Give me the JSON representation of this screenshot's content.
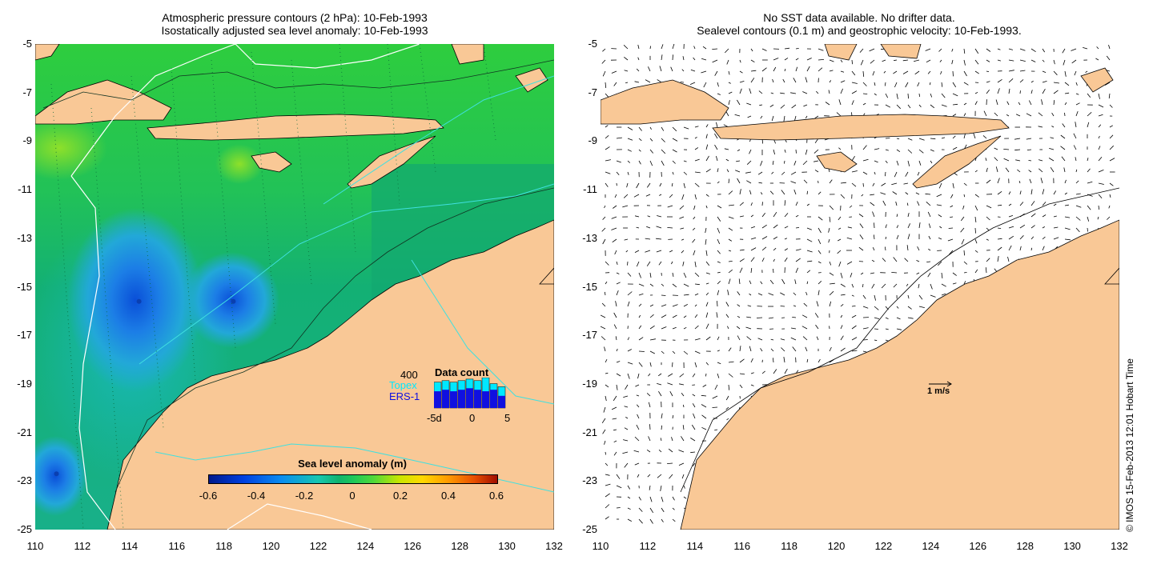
{
  "left_panel": {
    "title_line1": "Atmospheric pressure contours (2 hPa): 10-Feb-1993",
    "title_line2": "Isostatically adjusted sea level anomaly: 10-Feb-1993",
    "colorbar": {
      "title": "Sea level anomaly (m)",
      "ticks": [
        "-0.6",
        "-0.4",
        "-0.2",
        "0",
        "0.2",
        "0.4",
        "0.6"
      ]
    },
    "data_count": {
      "title": "Data count",
      "max_label": "400",
      "topex_label": "Topex",
      "ers_label": "ERS-1",
      "x_labels": [
        "-5d",
        "0",
        "5"
      ],
      "topex_values": [
        0.85,
        0.9,
        0.85,
        0.9,
        0.95,
        0.9,
        1.0,
        0.8,
        0.7
      ],
      "ers_values": [
        0.55,
        0.6,
        0.55,
        0.6,
        0.65,
        0.6,
        0.55,
        0.6,
        0.4
      ],
      "topex_color": "#00e8ff",
      "ers_color": "#1010e0"
    },
    "stations": [
      {
        "name": "low-1",
        "lon": 114.4,
        "lat": -15.6
      },
      {
        "name": "low-2",
        "lon": 118.4,
        "lat": -15.6
      },
      {
        "name": "low-3",
        "lon": 110.9,
        "lat": -22.7
      }
    ]
  },
  "right_panel": {
    "title_line1": "No SST data available.  No drifter data.",
    "title_line2": "Sealevel contours (0.1 m) and geostrophic velocity: 10-Feb-1993.",
    "vector_scale_label": "1 m/s"
  },
  "axes": {
    "lat_labels": [
      "-5",
      "-7",
      "-9",
      "-11",
      "-13",
      "-15",
      "-17",
      "-19",
      "-21",
      "-23",
      "-25"
    ],
    "lon_labels": [
      "110",
      "112",
      "114",
      "116",
      "118",
      "120",
      "122",
      "124",
      "126",
      "128",
      "130",
      "132"
    ],
    "lon_range": [
      110,
      132
    ],
    "lat_range": [
      -25,
      -5
    ]
  },
  "credit": "© IMOS 15-Feb-2013 12:01 Hobart Time",
  "colors": {
    "land": "#f9c896",
    "sea_green": "#22c44a",
    "sea_blue": "#1f8fe0",
    "pressure_line": "#ffffff",
    "track_line": "#40e0e0"
  }
}
